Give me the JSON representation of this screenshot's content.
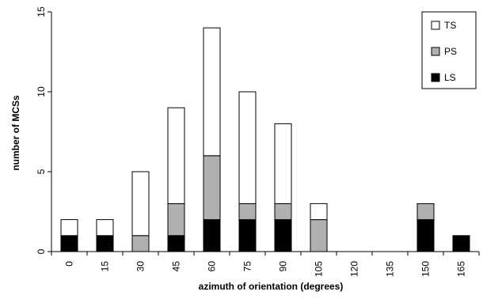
{
  "chart_data": {
    "type": "bar",
    "stacked": true,
    "xlabel": "azimuth of orientation (degrees)",
    "ylabel": "number of MCSs",
    "ylim": [
      0,
      15
    ],
    "yticks": [
      "0",
      "5",
      "10",
      "15"
    ],
    "categories": [
      "0",
      "15",
      "30",
      "45",
      "60",
      "75",
      "90",
      "105",
      "120",
      "135",
      "150",
      "165"
    ],
    "series": [
      {
        "name": "LS",
        "color": "#000000",
        "values": [
          1,
          1,
          0,
          1,
          2,
          2,
          2,
          0,
          0,
          0,
          2,
          1
        ]
      },
      {
        "name": "PS",
        "color": "#b0b0b0",
        "values": [
          0,
          0,
          1,
          2,
          4,
          1,
          1,
          2,
          0,
          0,
          1,
          0
        ]
      },
      {
        "name": "TS",
        "color": "#ffffff",
        "values": [
          1,
          1,
          4,
          6,
          8,
          7,
          5,
          1,
          0,
          0,
          0,
          0
        ]
      }
    ],
    "legend_order": [
      "TS",
      "PS",
      "LS"
    ],
    "legend_position": "top-right",
    "grid": false
  }
}
